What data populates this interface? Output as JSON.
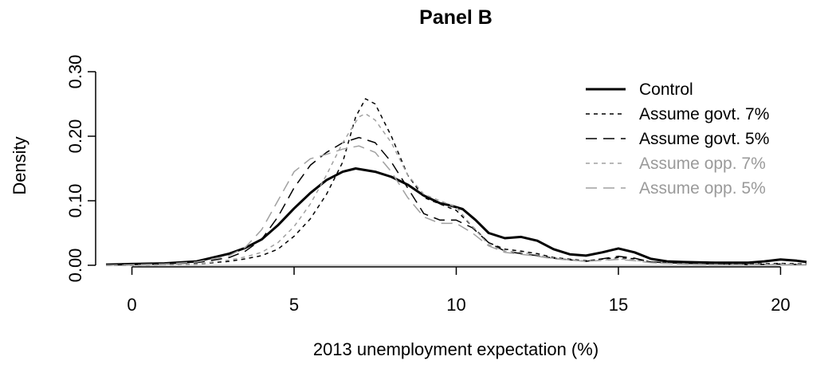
{
  "chart_data": {
    "type": "line",
    "title": "Panel B",
    "xlabel": "2013 unemployment expectation (%)",
    "ylabel": "Density",
    "xlim": [
      -0.8,
      20.8
    ],
    "ylim": [
      0.0,
      0.3
    ],
    "xticks": [
      0,
      5,
      10,
      15,
      20
    ],
    "xtick_labels": [
      "0",
      "5",
      "10",
      "15",
      "20"
    ],
    "yticks": [
      0.0,
      0.1,
      0.2,
      0.3
    ],
    "ytick_labels": [
      "0.00",
      "0.10",
      "0.20",
      "0.30"
    ],
    "baseline": 0,
    "grid": false,
    "legend_position": "top-right",
    "series": [
      {
        "name": "Control",
        "color": "#000000",
        "dash": "solid",
        "width": 3,
        "points": [
          [
            -0.8,
            0.001
          ],
          [
            0,
            0.002
          ],
          [
            1,
            0.003
          ],
          [
            2,
            0.006
          ],
          [
            3,
            0.018
          ],
          [
            3.5,
            0.027
          ],
          [
            4,
            0.04
          ],
          [
            4.5,
            0.062
          ],
          [
            5,
            0.088
          ],
          [
            5.5,
            0.112
          ],
          [
            6,
            0.132
          ],
          [
            6.5,
            0.145
          ],
          [
            6.9,
            0.15
          ],
          [
            7.5,
            0.145
          ],
          [
            8,
            0.137
          ],
          [
            8.5,
            0.125
          ],
          [
            9,
            0.108
          ],
          [
            9.5,
            0.096
          ],
          [
            9.8,
            0.093
          ],
          [
            10.2,
            0.087
          ],
          [
            10.6,
            0.07
          ],
          [
            11,
            0.05
          ],
          [
            11.5,
            0.042
          ],
          [
            12,
            0.044
          ],
          [
            12.5,
            0.038
          ],
          [
            13,
            0.025
          ],
          [
            13.5,
            0.017
          ],
          [
            14,
            0.015
          ],
          [
            14.5,
            0.02
          ],
          [
            15,
            0.026
          ],
          [
            15.5,
            0.02
          ],
          [
            16,
            0.01
          ],
          [
            16.5,
            0.006
          ],
          [
            17,
            0.005
          ],
          [
            18,
            0.004
          ],
          [
            19,
            0.004
          ],
          [
            19.5,
            0.006
          ],
          [
            20,
            0.009
          ],
          [
            20.5,
            0.007
          ],
          [
            20.8,
            0.005
          ]
        ]
      },
      {
        "name": "Assume govt. 7%",
        "color": "#000000",
        "dash": "5 5",
        "width": 1.5,
        "points": [
          [
            -0.8,
            0.0
          ],
          [
            0,
            0.0
          ],
          [
            1,
            0.001
          ],
          [
            2,
            0.002
          ],
          [
            3,
            0.006
          ],
          [
            3.5,
            0.01
          ],
          [
            4,
            0.015
          ],
          [
            4.5,
            0.025
          ],
          [
            5,
            0.045
          ],
          [
            5.5,
            0.072
          ],
          [
            6,
            0.11
          ],
          [
            6.5,
            0.16
          ],
          [
            6.9,
            0.23
          ],
          [
            7.2,
            0.258
          ],
          [
            7.5,
            0.25
          ],
          [
            8,
            0.2
          ],
          [
            8.5,
            0.14
          ],
          [
            9,
            0.105
          ],
          [
            9.5,
            0.095
          ],
          [
            10,
            0.085
          ],
          [
            10.5,
            0.06
          ],
          [
            11,
            0.035
          ],
          [
            11.5,
            0.025
          ],
          [
            12,
            0.022
          ],
          [
            12.5,
            0.018
          ],
          [
            13,
            0.012
          ],
          [
            14,
            0.007
          ],
          [
            15,
            0.012
          ],
          [
            15.5,
            0.01
          ],
          [
            16,
            0.005
          ],
          [
            17,
            0.003
          ],
          [
            18,
            0.002
          ],
          [
            19,
            0.002
          ],
          [
            20,
            0.003
          ],
          [
            20.8,
            0.002
          ]
        ]
      },
      {
        "name": "Assume govt. 5%",
        "color": "#000000",
        "dash": "14 8",
        "width": 1.5,
        "points": [
          [
            -0.8,
            0.0
          ],
          [
            0,
            0.001
          ],
          [
            1,
            0.002
          ],
          [
            2,
            0.004
          ],
          [
            3,
            0.012
          ],
          [
            3.5,
            0.022
          ],
          [
            4,
            0.04
          ],
          [
            4.5,
            0.075
          ],
          [
            5,
            0.12
          ],
          [
            5.5,
            0.155
          ],
          [
            6,
            0.175
          ],
          [
            6.5,
            0.19
          ],
          [
            7,
            0.198
          ],
          [
            7.5,
            0.19
          ],
          [
            8,
            0.16
          ],
          [
            8.5,
            0.12
          ],
          [
            9,
            0.08
          ],
          [
            9.5,
            0.07
          ],
          [
            10,
            0.07
          ],
          [
            10.5,
            0.058
          ],
          [
            11,
            0.035
          ],
          [
            11.5,
            0.022
          ],
          [
            12,
            0.018
          ],
          [
            12.5,
            0.015
          ],
          [
            13,
            0.011
          ],
          [
            14,
            0.006
          ],
          [
            15,
            0.014
          ],
          [
            15.5,
            0.011
          ],
          [
            16,
            0.005
          ],
          [
            17,
            0.003
          ],
          [
            18,
            0.002
          ],
          [
            19,
            0.001
          ],
          [
            20,
            0.002
          ],
          [
            20.8,
            0.001
          ]
        ]
      },
      {
        "name": "Assume opp. 7%",
        "color": "#a0a0a0",
        "dash": "5 5",
        "width": 1.5,
        "points": [
          [
            -0.8,
            0.0
          ],
          [
            0,
            0.0
          ],
          [
            1,
            0.001
          ],
          [
            2,
            0.002
          ],
          [
            3,
            0.008
          ],
          [
            3.5,
            0.013
          ],
          [
            4,
            0.02
          ],
          [
            4.5,
            0.035
          ],
          [
            5,
            0.06
          ],
          [
            5.5,
            0.095
          ],
          [
            6,
            0.14
          ],
          [
            6.5,
            0.19
          ],
          [
            7,
            0.23
          ],
          [
            7.2,
            0.235
          ],
          [
            7.5,
            0.225
          ],
          [
            8,
            0.19
          ],
          [
            8.5,
            0.14
          ],
          [
            9,
            0.11
          ],
          [
            9.5,
            0.1
          ],
          [
            10,
            0.09
          ],
          [
            10.5,
            0.06
          ],
          [
            11,
            0.032
          ],
          [
            11.5,
            0.022
          ],
          [
            12,
            0.02
          ],
          [
            12.5,
            0.016
          ],
          [
            13,
            0.011
          ],
          [
            14,
            0.006
          ],
          [
            15,
            0.01
          ],
          [
            15.5,
            0.008
          ],
          [
            16,
            0.004
          ],
          [
            17,
            0.002
          ],
          [
            18,
            0.001
          ],
          [
            19,
            0.001
          ],
          [
            20,
            0.002
          ],
          [
            20.8,
            0.001
          ]
        ]
      },
      {
        "name": "Assume opp. 5%",
        "color": "#a0a0a0",
        "dash": "14 8",
        "width": 1.5,
        "points": [
          [
            -0.8,
            0.0
          ],
          [
            0,
            0.001
          ],
          [
            1,
            0.002
          ],
          [
            2,
            0.005
          ],
          [
            3,
            0.015
          ],
          [
            3.5,
            0.028
          ],
          [
            4,
            0.055
          ],
          [
            4.5,
            0.1
          ],
          [
            5,
            0.145
          ],
          [
            5.5,
            0.165
          ],
          [
            6,
            0.172
          ],
          [
            6.5,
            0.18
          ],
          [
            7,
            0.185
          ],
          [
            7.5,
            0.175
          ],
          [
            8,
            0.145
          ],
          [
            8.5,
            0.105
          ],
          [
            9,
            0.075
          ],
          [
            9.5,
            0.065
          ],
          [
            10,
            0.065
          ],
          [
            10.5,
            0.05
          ],
          [
            11,
            0.03
          ],
          [
            11.5,
            0.02
          ],
          [
            12,
            0.017
          ],
          [
            12.5,
            0.014
          ],
          [
            13,
            0.01
          ],
          [
            14,
            0.006
          ],
          [
            15,
            0.009
          ],
          [
            15.5,
            0.007
          ],
          [
            16,
            0.004
          ],
          [
            17,
            0.002
          ],
          [
            18,
            0.001
          ],
          [
            19,
            0.001
          ],
          [
            20,
            0.001
          ],
          [
            20.8,
            0.001
          ]
        ]
      }
    ]
  }
}
